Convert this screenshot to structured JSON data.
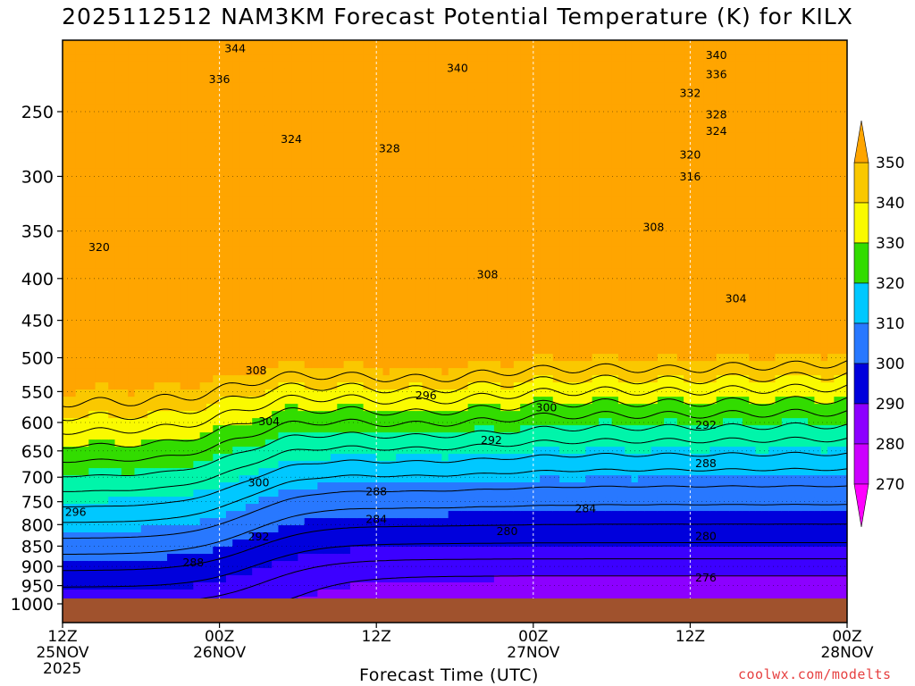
{
  "title": "2025112512 NAM3KM Forecast Potential Temperature (K) for KILX",
  "credit": "coolwx.com/modelts",
  "chart_data": {
    "type": "heatmap",
    "title": "2025112512 NAM3KM Forecast Potential Temperature (K) for KILX",
    "xlabel": "Forecast Time (UTC)",
    "ylabel": "",
    "x_unit": "forecast hour",
    "xlim": [
      0,
      60
    ],
    "y_scale": "log-pressure (hPa, inverted)",
    "ylim": [
      1000,
      200
    ],
    "x_ticks": [
      {
        "hour": 0,
        "label": [
          "12Z",
          "25NOV",
          "2025"
        ]
      },
      {
        "hour": 12,
        "label": [
          "00Z",
          "26NOV"
        ]
      },
      {
        "hour": 24,
        "label": [
          "12Z"
        ]
      },
      {
        "hour": 36,
        "label": [
          "00Z",
          "27NOV"
        ]
      },
      {
        "hour": 48,
        "label": [
          "12Z"
        ]
      },
      {
        "hour": 60,
        "label": [
          "00Z",
          "28NOV"
        ]
      }
    ],
    "y_ticks": [
      250,
      300,
      350,
      400,
      450,
      500,
      550,
      600,
      650,
      700,
      750,
      800,
      850,
      900,
      950,
      1000
    ],
    "grid": true,
    "colorbar": {
      "position": "right",
      "levels": [
        270,
        280,
        290,
        300,
        310,
        320,
        330,
        340,
        350
      ],
      "colors": [
        "#ff00ff",
        "#cc00ff",
        "#8c00ff",
        "#3c00ff",
        "#0000dc",
        "#2878ff",
        "#00c8ff",
        "#00f5aa",
        "#32dc00",
        "#fafa00",
        "#fac800",
        "#ffa500"
      ]
    },
    "contour_interval_K": 4,
    "contour_labels": [
      {
        "hour": 13.2,
        "p": 209,
        "text": "344"
      },
      {
        "hour": 30.2,
        "p": 221,
        "text": "340"
      },
      {
        "hour": 50.0,
        "p": 213,
        "text": "340"
      },
      {
        "hour": 50.0,
        "p": 225,
        "text": "336"
      },
      {
        "hour": 12.0,
        "p": 228,
        "text": "336"
      },
      {
        "hour": 48.0,
        "p": 237,
        "text": "332"
      },
      {
        "hour": 50.0,
        "p": 252,
        "text": "328"
      },
      {
        "hour": 25.0,
        "p": 277,
        "text": "328"
      },
      {
        "hour": 17.5,
        "p": 270,
        "text": "324"
      },
      {
        "hour": 50.0,
        "p": 264,
        "text": "324"
      },
      {
        "hour": 48.0,
        "p": 282,
        "text": "320"
      },
      {
        "hour": 48.0,
        "p": 300,
        "text": "316"
      },
      {
        "hour": 2.8,
        "p": 366,
        "text": "320"
      },
      {
        "hour": 45.2,
        "p": 346,
        "text": "308"
      },
      {
        "hour": 32.5,
        "p": 395,
        "text": "308"
      },
      {
        "hour": 51.5,
        "p": 423,
        "text": "304"
      },
      {
        "hour": 14.8,
        "p": 518,
        "text": "308"
      },
      {
        "hour": 27.8,
        "p": 556,
        "text": "296"
      },
      {
        "hour": 37.0,
        "p": 575,
        "text": "300"
      },
      {
        "hour": 15.8,
        "p": 598,
        "text": "304"
      },
      {
        "hour": 32.8,
        "p": 630,
        "text": "292"
      },
      {
        "hour": 49.2,
        "p": 604,
        "text": "292"
      },
      {
        "hour": 49.2,
        "p": 673,
        "text": "288"
      },
      {
        "hour": 15.0,
        "p": 710,
        "text": "300"
      },
      {
        "hour": 24.0,
        "p": 728,
        "text": "288"
      },
      {
        "hour": 40.0,
        "p": 764,
        "text": "284"
      },
      {
        "hour": 1.0,
        "p": 772,
        "text": "296"
      },
      {
        "hour": 24.0,
        "p": 787,
        "text": "284"
      },
      {
        "hour": 34.0,
        "p": 815,
        "text": "280"
      },
      {
        "hour": 15.0,
        "p": 827,
        "text": "292"
      },
      {
        "hour": 49.2,
        "p": 826,
        "text": "280"
      },
      {
        "hour": 10.0,
        "p": 890,
        "text": "288"
      },
      {
        "hour": 49.2,
        "p": 929,
        "text": "276"
      }
    ],
    "terrain_color": "#a0522d"
  }
}
